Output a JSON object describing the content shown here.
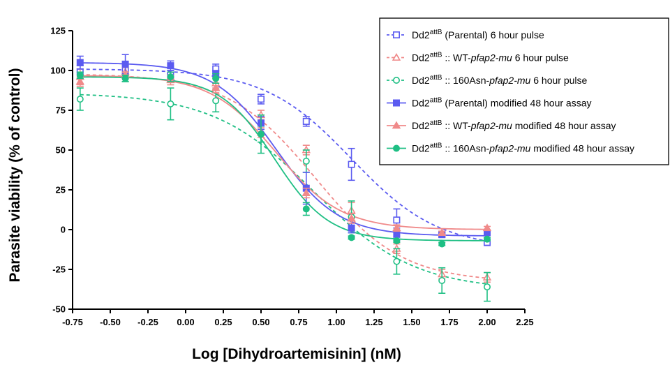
{
  "chart_data": {
    "type": "scatter",
    "title": "",
    "xlabel": "Log [Dihydroartemisinin] (nM)",
    "ylabel": "Parasite viability (% of control)",
    "xlim": [
      -0.75,
      2.25
    ],
    "ylim": [
      -50,
      125
    ],
    "xticks": [
      "-0.75",
      "-0.50",
      "-0.25",
      "0.00",
      "0.25",
      "0.50",
      "0.75",
      "1.00",
      "1.25",
      "1.50",
      "1.75",
      "2.00",
      "2.25"
    ],
    "yticks": [
      "-50",
      "-25",
      "0",
      "25",
      "50",
      "75",
      "100",
      "125"
    ],
    "x": [
      -0.7,
      -0.4,
      -0.1,
      0.2,
      0.5,
      0.8,
      1.1,
      1.4,
      1.7,
      2.0
    ],
    "legend_position": "top-right",
    "series": [
      {
        "base": "Dd2",
        "sup": "attB",
        "pre": " (Parental)",
        "gene": "",
        "post": " 6 hour pulse",
        "color": "#5b5bf0",
        "marker": "square",
        "filled": false,
        "dashed": true,
        "values": [
          99,
          100,
          97,
          101,
          82,
          68,
          41,
          6,
          -3,
          -8
        ],
        "errors": [
          4,
          3,
          3,
          3,
          3,
          3,
          10,
          7,
          2,
          2
        ],
        "fit": {
          "top": 101,
          "bottom": -12,
          "logec50": 1.1,
          "hill": 1.5
        }
      },
      {
        "base": "Dd2",
        "sup": "attB",
        "pre": " :: WT-",
        "gene": "pfap2-mu",
        "post": " 6 hour pulse",
        "color": "#f08a8a",
        "marker": "triangle",
        "filled": false,
        "dashed": true,
        "values": [
          96,
          99,
          96,
          92,
          72,
          50,
          12,
          -12,
          -28,
          -30
        ],
        "errors": [
          5,
          3,
          3,
          3,
          3,
          3,
          5,
          3,
          3,
          3
        ],
        "fit": {
          "top": 98,
          "bottom": -33,
          "logec50": 0.86,
          "hill": 1.5
        }
      },
      {
        "base": "Dd2",
        "sup": "attB",
        "pre": " :: 160Asn-",
        "gene": "pfap2-mu",
        "post": " 6 hour pulse",
        "color": "#1fbf84",
        "marker": "circle",
        "filled": false,
        "dashed": true,
        "values": [
          82,
          96,
          79,
          81,
          60,
          43,
          8,
          -20,
          -32,
          -36
        ],
        "errors": [
          7,
          3,
          10,
          7,
          5,
          7,
          10,
          8,
          8,
          9
        ],
        "fit": {
          "top": 86,
          "bottom": -38,
          "logec50": 0.85,
          "hill": 1.3
        }
      },
      {
        "base": "Dd2",
        "sup": "attB",
        "pre": " (Parental) modified 48 hour assay",
        "gene": "",
        "post": "",
        "color": "#5b5bf0",
        "marker": "square",
        "filled": true,
        "dashed": false,
        "values": [
          105,
          104,
          103,
          98,
          67,
          26,
          1,
          -3,
          -3,
          -2
        ],
        "errors": [
          4,
          6,
          3,
          2,
          4,
          10,
          3,
          4,
          1,
          1
        ],
        "fit": {
          "top": 105,
          "bottom": -4,
          "logec50": 0.6,
          "hill": 2.1
        }
      },
      {
        "base": "Dd2",
        "sup": "attB",
        "pre": " :: WT-",
        "gene": "pfap2-mu",
        "post": " modified 48 hour assay",
        "color": "#f08a8a",
        "marker": "triangle",
        "filled": true,
        "dashed": false,
        "values": [
          93,
          97,
          94,
          89,
          61,
          23,
          7,
          1,
          -2,
          1
        ],
        "errors": [
          3,
          2,
          3,
          3,
          3,
          3,
          3,
          2,
          1,
          1
        ],
        "fit": {
          "top": 97,
          "bottom": 0,
          "logec50": 0.6,
          "hill": 2.0
        }
      },
      {
        "base": "Dd2",
        "sup": "attB",
        "pre": " :: 160Asn-",
        "gene": "pfap2-mu",
        "post": " modified 48 hour assay",
        "color": "#1fbf84",
        "marker": "circle",
        "filled": true,
        "dashed": false,
        "values": [
          97,
          95,
          96,
          95,
          60,
          13,
          -5,
          -7,
          -9,
          -6
        ],
        "errors": [
          2,
          2,
          3,
          3,
          12,
          4,
          1,
          1,
          1,
          1
        ],
        "fit": {
          "top": 96,
          "bottom": -7,
          "logec50": 0.59,
          "hill": 2.4
        }
      }
    ]
  }
}
